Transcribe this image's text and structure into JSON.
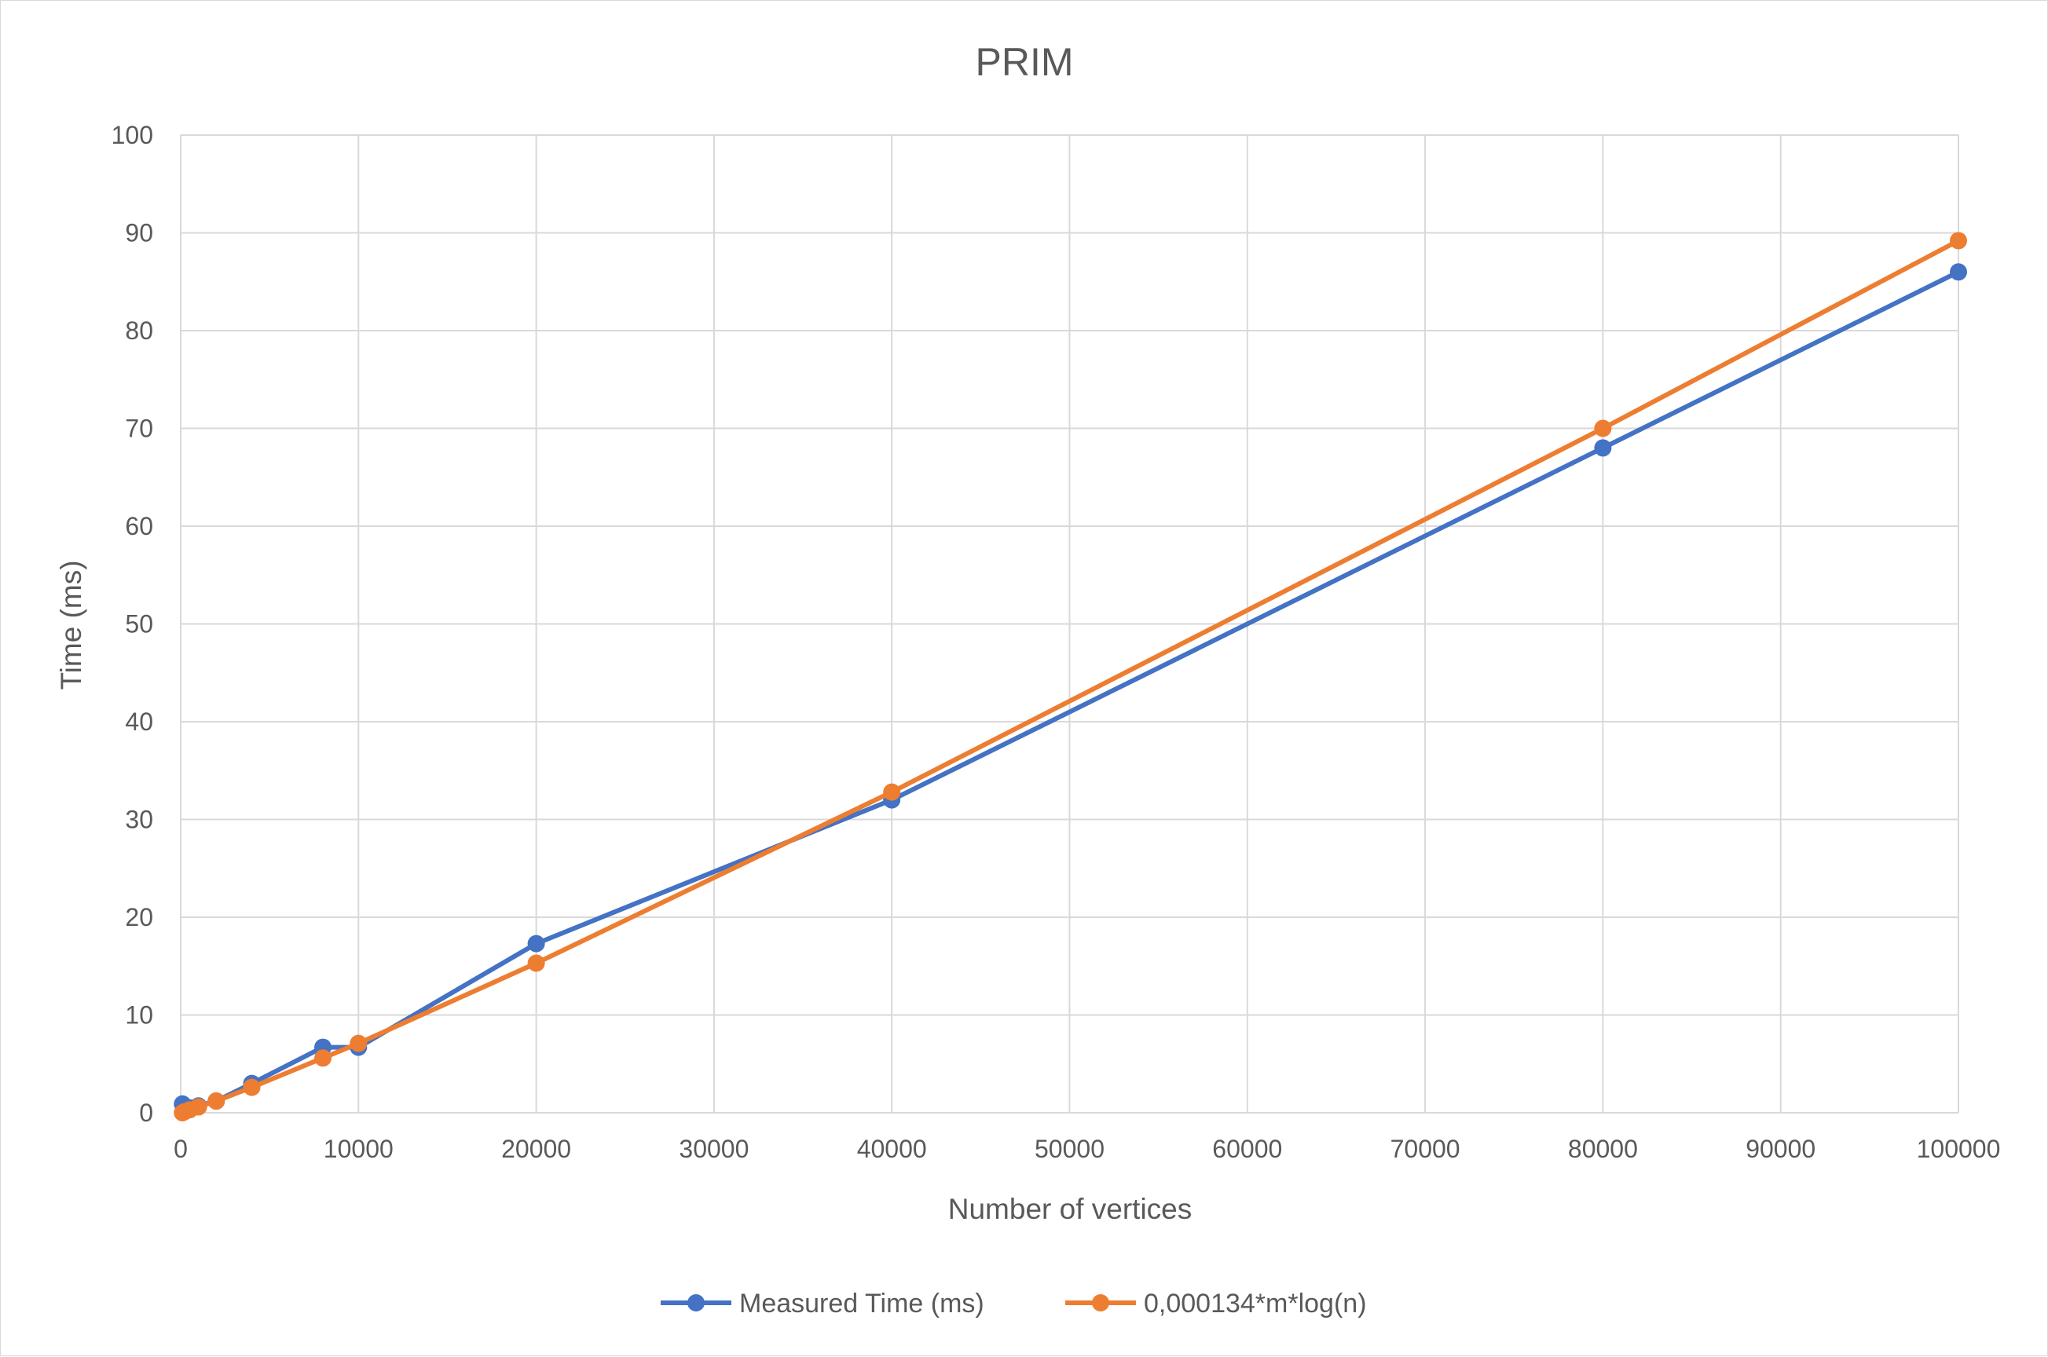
{
  "chart_data": {
    "type": "line",
    "title": "PRIM",
    "xlabel": "Number of vertices",
    "ylabel": "Time (ms)",
    "xlim": [
      0,
      100000
    ],
    "ylim": [
      0,
      100
    ],
    "xticks": [
      0,
      10000,
      20000,
      30000,
      40000,
      50000,
      60000,
      70000,
      80000,
      90000,
      100000
    ],
    "yticks": [
      0,
      10,
      20,
      30,
      40,
      50,
      60,
      70,
      80,
      90,
      100
    ],
    "grid": true,
    "legend_position": "bottom",
    "series": [
      {
        "name": "Measured Time (ms)",
        "color": "#4472c4",
        "points": [
          [
            100,
            0.9
          ],
          [
            200,
            0.2
          ],
          [
            500,
            0.5
          ],
          [
            1000,
            0.7
          ],
          [
            2000,
            1.2
          ],
          [
            4000,
            3.0
          ],
          [
            8000,
            6.7
          ],
          [
            10000,
            6.7
          ],
          [
            20000,
            17.3
          ],
          [
            40000,
            32.0
          ],
          [
            80000,
            68.0
          ],
          [
            100000,
            86.0
          ]
        ]
      },
      {
        "name": "0,000134*m*log(n)",
        "color": "#ed7d31",
        "points": [
          [
            100,
            0.0
          ],
          [
            200,
            0.1
          ],
          [
            500,
            0.3
          ],
          [
            1000,
            0.6
          ],
          [
            2000,
            1.2
          ],
          [
            4000,
            2.6
          ],
          [
            8000,
            5.6
          ],
          [
            10000,
            7.1
          ],
          [
            20000,
            15.3
          ],
          [
            40000,
            32.8
          ],
          [
            80000,
            70.0
          ],
          [
            100000,
            89.2
          ]
        ]
      }
    ]
  }
}
